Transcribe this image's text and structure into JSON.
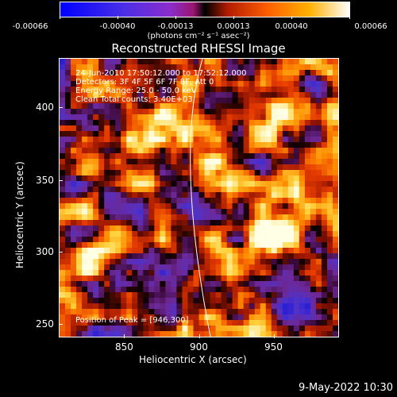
{
  "colorbar": {
    "tick_labels": [
      "-0.00066",
      "-0.00040",
      "-0.00013",
      "0.00013",
      "0.00040",
      "0.00066"
    ],
    "units": "(photons cm⁻² s⁻¹ asec⁻²)"
  },
  "plot": {
    "title": "Reconstructed RHESSI Image",
    "x_axis_label": "Heliocentric X (arcsec)",
    "y_axis_label": "Heliocentric Y (arcsec)",
    "x_ticks": [
      "850",
      "900",
      "950"
    ],
    "y_ticks": [
      "400",
      "350",
      "300",
      "250"
    ],
    "info_lines": [
      "24-Jun-2010 17:50:12.000 to 17:52:12.000",
      "Detectors: 3F 4F 5F 6F 7F 8F, Att 0",
      "Energy Range: 25.0 - 50.0 keV",
      "Clean     Total counts: 3.40E+03"
    ],
    "peak_label": "Position of Peak = [946,300]"
  },
  "footer": {
    "timestamp": "9-May-2022 10:30"
  },
  "colors": {
    "background": "#000000",
    "axis": "#ffffff"
  }
}
